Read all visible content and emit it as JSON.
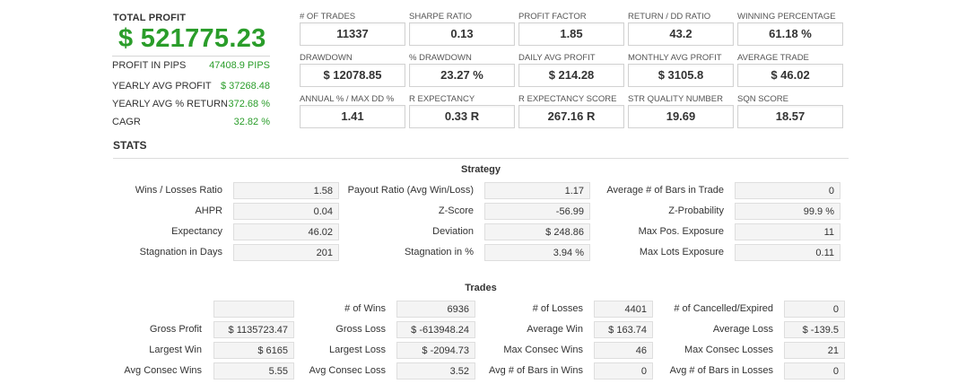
{
  "total_profit": {
    "label": "TOTAL PROFIT",
    "value": "$ 521775.23"
  },
  "summary": [
    {
      "label": "PROFIT IN PIPS",
      "value": "47408.9 PIPS"
    },
    {
      "label": "YEARLY AVG PROFIT",
      "value": "$ 37268.48"
    },
    {
      "label": "YEARLY AVG % RETURN",
      "value": "372.68 %"
    },
    {
      "label": "CAGR",
      "value": "32.82 %"
    }
  ],
  "kpis": [
    {
      "label": "# OF TRADES",
      "value": "11337"
    },
    {
      "label": "SHARPE RATIO",
      "value": "0.13"
    },
    {
      "label": "PROFIT FACTOR",
      "value": "1.85"
    },
    {
      "label": "RETURN / DD RATIO",
      "value": "43.2"
    },
    {
      "label": "WINNING PERCENTAGE",
      "value": "61.18 %"
    },
    {
      "label": "DRAWDOWN",
      "value": "$ 12078.85"
    },
    {
      "label": "% DRAWDOWN",
      "value": "23.27 %"
    },
    {
      "label": "DAILY AVG PROFIT",
      "value": "$ 214.28"
    },
    {
      "label": "MONTHLY AVG PROFIT",
      "value": "$ 3105.8"
    },
    {
      "label": "AVERAGE TRADE",
      "value": "$ 46.02"
    },
    {
      "label": "ANNUAL % / MAX DD %",
      "value": "1.41"
    },
    {
      "label": "R EXPECTANCY",
      "value": "0.33 R"
    },
    {
      "label": "R EXPECTANCY SCORE",
      "value": "267.16 R"
    },
    {
      "label": "STR QUALITY NUMBER",
      "value": "19.69"
    },
    {
      "label": "SQN SCORE",
      "value": "18.57"
    }
  ],
  "stats_title": "STATS",
  "strategy": {
    "title": "Strategy",
    "rows": [
      [
        {
          "label": "Wins / Losses Ratio",
          "value": "1.58"
        },
        {
          "label": "Payout Ratio (Avg Win/Loss)",
          "value": "1.17"
        },
        {
          "label": "Average # of Bars in Trade",
          "value": "0"
        }
      ],
      [
        {
          "label": "AHPR",
          "value": "0.04"
        },
        {
          "label": "Z-Score",
          "value": "-56.99"
        },
        {
          "label": "Z-Probability",
          "value": "99.9 %"
        }
      ],
      [
        {
          "label": "Expectancy",
          "value": "46.02"
        },
        {
          "label": "Deviation",
          "value": "$ 248.86"
        },
        {
          "label": "Max Pos. Exposure",
          "value": "11"
        }
      ],
      [
        {
          "label": "Stagnation in Days",
          "value": "201"
        },
        {
          "label": "Stagnation in %",
          "value": "3.94 %"
        },
        {
          "label": "Max Lots Exposure",
          "value": "0.11"
        }
      ]
    ]
  },
  "trades": {
    "title": "Trades",
    "rows": [
      [
        {
          "label": "",
          "value": ""
        },
        {
          "label": "# of Wins",
          "value": "6936"
        },
        {
          "label": "# of Losses",
          "value": "4401"
        },
        {
          "label": "# of Cancelled/Expired",
          "value": "0"
        }
      ],
      [
        {
          "label": "Gross Profit",
          "value": "$ 1135723.47"
        },
        {
          "label": "Gross Loss",
          "value": "$ -613948.24"
        },
        {
          "label": "Average Win",
          "value": "$ 163.74"
        },
        {
          "label": "Average Loss",
          "value": "$ -139.5"
        }
      ],
      [
        {
          "label": "Largest Win",
          "value": "$ 6165"
        },
        {
          "label": "Largest Loss",
          "value": "$ -2094.73"
        },
        {
          "label": "Max Consec Wins",
          "value": "46"
        },
        {
          "label": "Max Consec Losses",
          "value": "21"
        }
      ],
      [
        {
          "label": "Avg Consec Wins",
          "value": "5.55"
        },
        {
          "label": "Avg Consec Loss",
          "value": "3.52"
        },
        {
          "label": "Avg # of Bars in Wins",
          "value": "0"
        },
        {
          "label": "Avg # of Bars in Losses",
          "value": "0"
        }
      ]
    ]
  }
}
